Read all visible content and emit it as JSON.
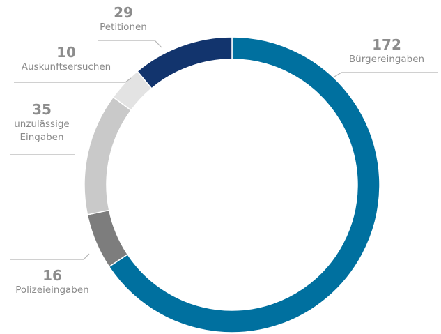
{
  "chart_data": {
    "type": "pie",
    "categories": [
      "Bürgereingaben",
      "Polizeieingaben",
      "unzulässige Eingaben",
      "Auskunftsersuchen",
      "Petitionen"
    ],
    "values": [
      172,
      16,
      35,
      10,
      29
    ],
    "colors": [
      "#00709f",
      "#7d7d7d",
      "#c9c9c9",
      "#e3e3e3",
      "#12346d"
    ],
    "donut": true
  }
}
